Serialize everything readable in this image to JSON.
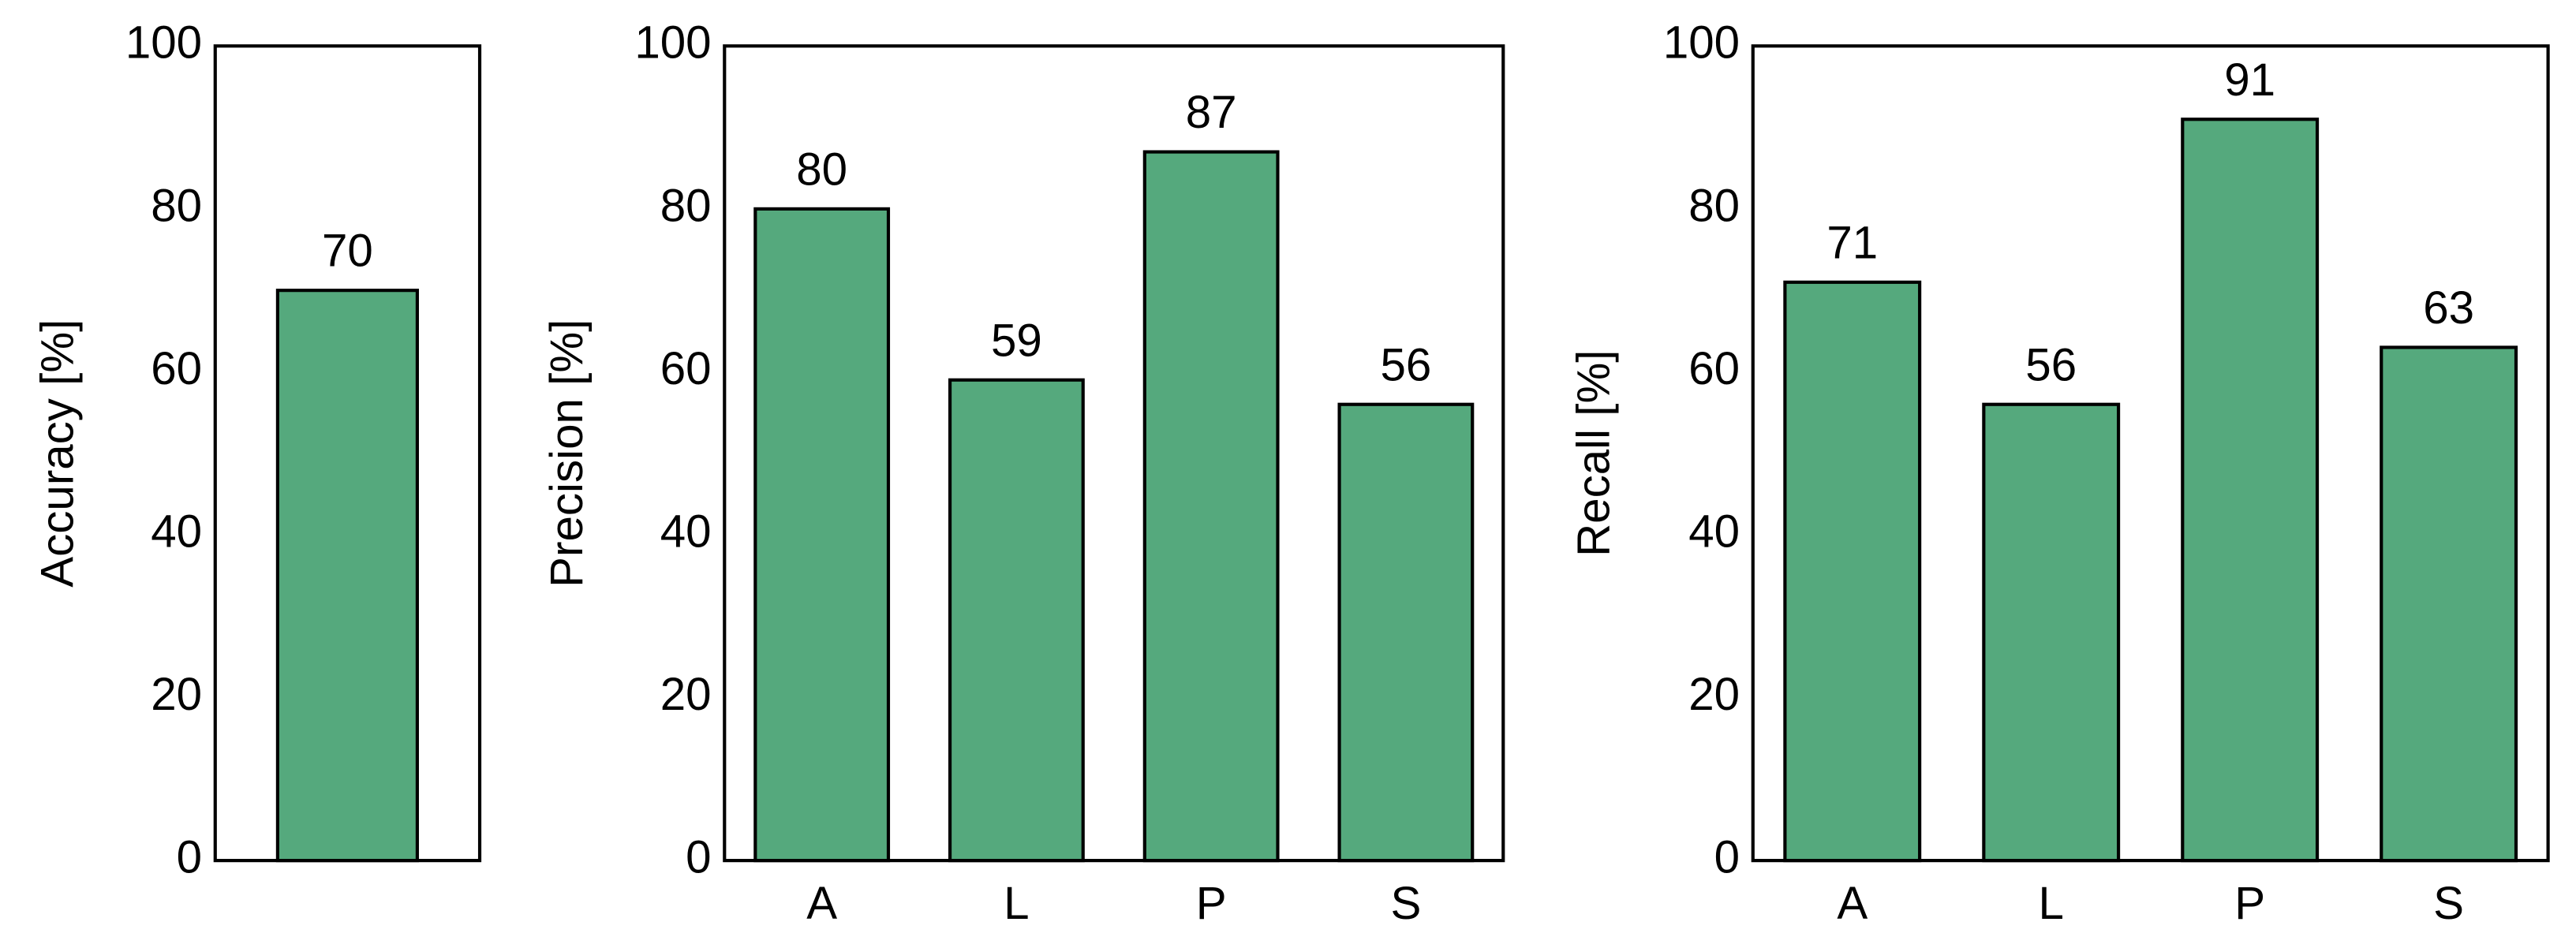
{
  "chart_data": [
    {
      "type": "bar",
      "ylabel": "Accuracy [%]",
      "categories": [
        null
      ],
      "values": [
        70
      ],
      "color": "#55a97d",
      "ylim": [
        0,
        100
      ],
      "yticks": [
        0,
        20,
        40,
        60,
        80,
        100
      ],
      "grid": false
    },
    {
      "type": "bar",
      "ylabel": "Precision [%]",
      "categories": [
        "A",
        "L",
        "P",
        "S"
      ],
      "values": [
        80,
        59,
        87,
        56
      ],
      "color": "#55a97d",
      "ylim": [
        0,
        100
      ],
      "yticks": [
        0,
        20,
        40,
        60,
        80,
        100
      ],
      "grid": false
    },
    {
      "type": "bar",
      "ylabel": "Recall [%]",
      "categories": [
        "A",
        "L",
        "P",
        "S"
      ],
      "values": [
        71,
        56,
        91,
        63
      ],
      "color": "#55a97d",
      "ylim": [
        0,
        100
      ],
      "yticks": [
        0,
        20,
        40,
        60,
        80,
        100
      ],
      "grid": false
    }
  ]
}
